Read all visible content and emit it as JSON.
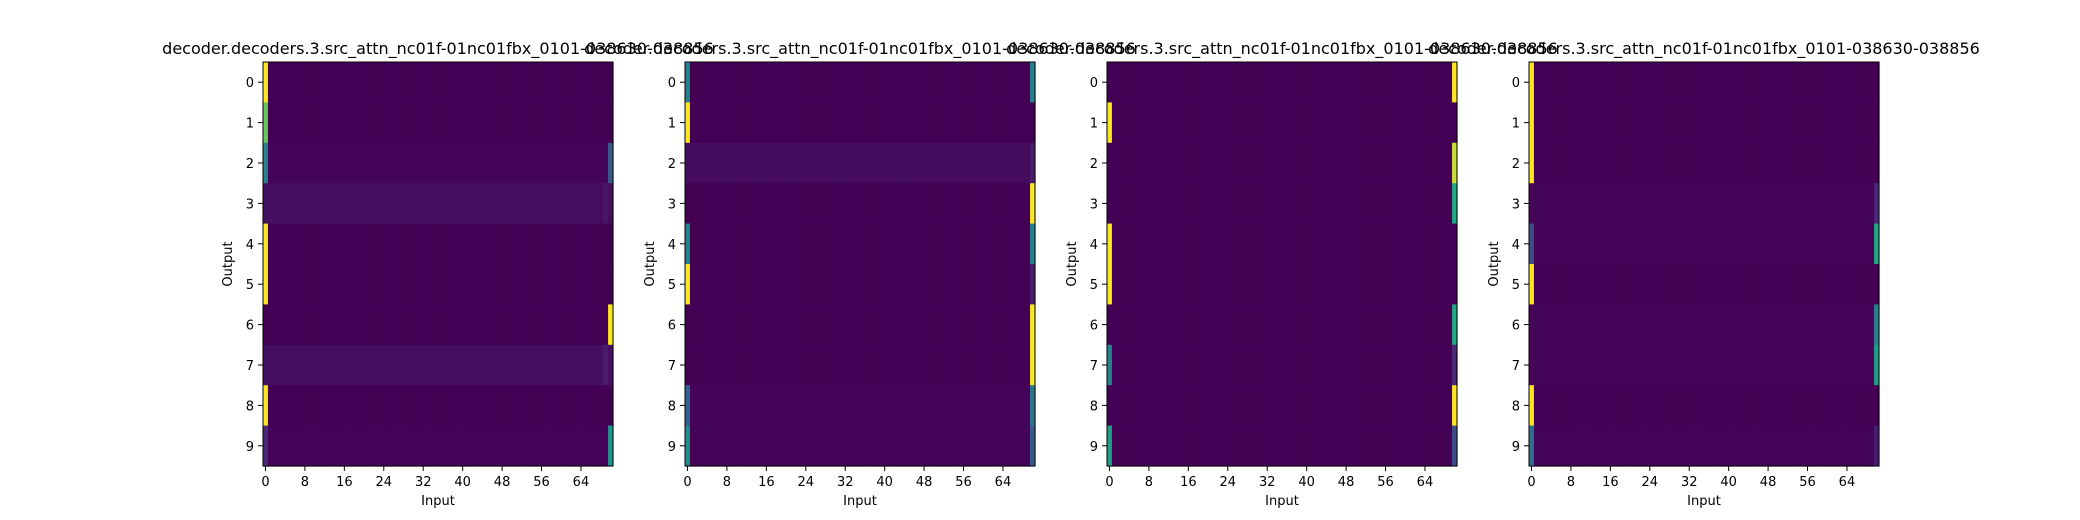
{
  "chart_data": [
    {
      "type": "heatmap",
      "title": "decoder.decoders.3.src_attn_nc01f-01nc01fbx_0101-038630-038856",
      "xlabel": "Input",
      "ylabel": "Output",
      "xticks": [
        "0",
        "8",
        "16",
        "24",
        "32",
        "40",
        "48",
        "56",
        "64"
      ],
      "yticks": [
        "0",
        "1",
        "2",
        "3",
        "4",
        "5",
        "6",
        "7",
        "8",
        "9"
      ],
      "n_cols": 71,
      "n_rows": 10,
      "colormap": "viridis",
      "rows": [
        {
          "peaks": [
            [
              0,
              1.0
            ]
          ],
          "base": 0.0
        },
        {
          "peaks": [
            [
              0,
              0.85
            ]
          ],
          "base": 0.0
        },
        {
          "peaks": [
            [
              0,
              0.55
            ],
            [
              70,
              0.35
            ]
          ],
          "base": 0.01
        },
        {
          "peaks": [
            [
              69,
              0.08
            ]
          ],
          "base": 0.05
        },
        {
          "peaks": [
            [
              0,
              1.0
            ]
          ],
          "base": 0.0
        },
        {
          "peaks": [
            [
              0,
              1.0
            ]
          ],
          "base": 0.0
        },
        {
          "peaks": [
            [
              70,
              1.0
            ]
          ],
          "base": 0.0
        },
        {
          "peaks": [
            [
              69,
              0.1
            ]
          ],
          "base": 0.05
        },
        {
          "peaks": [
            [
              0,
              1.0
            ]
          ],
          "base": 0.0
        },
        {
          "peaks": [
            [
              0,
              0.15
            ],
            [
              70,
              0.65
            ]
          ],
          "base": 0.01
        }
      ]
    },
    {
      "type": "heatmap",
      "title": "decoder.decoders.3.src_attn_nc01f-01nc01fbx_0101-038630-038856",
      "xlabel": "Input",
      "ylabel": "Output",
      "xticks": [
        "0",
        "8",
        "16",
        "24",
        "32",
        "40",
        "48",
        "56",
        "64"
      ],
      "yticks": [
        "0",
        "1",
        "2",
        "3",
        "4",
        "5",
        "6",
        "7",
        "8",
        "9"
      ],
      "n_cols": 71,
      "n_rows": 10,
      "colormap": "viridis",
      "rows": [
        {
          "peaks": [
            [
              0,
              0.55
            ],
            [
              70,
              0.55
            ]
          ],
          "base": 0.0
        },
        {
          "peaks": [
            [
              0,
              1.0
            ]
          ],
          "base": 0.0
        },
        {
          "peaks": [
            [
              70,
              0.1
            ]
          ],
          "base": 0.04
        },
        {
          "peaks": [
            [
              70,
              1.0
            ]
          ],
          "base": 0.0
        },
        {
          "peaks": [
            [
              0,
              0.55
            ],
            [
              70,
              0.55
            ]
          ],
          "base": 0.0
        },
        {
          "peaks": [
            [
              0,
              1.0
            ],
            [
              70,
              0.1
            ]
          ],
          "base": 0.0
        },
        {
          "peaks": [
            [
              70,
              1.0
            ]
          ],
          "base": 0.0
        },
        {
          "peaks": [
            [
              70,
              1.0
            ]
          ],
          "base": 0.0
        },
        {
          "peaks": [
            [
              0,
              0.4
            ],
            [
              70,
              0.5
            ]
          ],
          "base": 0.01
        },
        {
          "peaks": [
            [
              0,
              0.6
            ],
            [
              70,
              0.35
            ]
          ],
          "base": 0.01
        }
      ]
    },
    {
      "type": "heatmap",
      "title": "decoder.decoders.3.src_attn_nc01f-01nc01fbx_0101-038630-038856",
      "xlabel": "Input",
      "ylabel": "Output",
      "xticks": [
        "0",
        "8",
        "16",
        "24",
        "32",
        "40",
        "48",
        "56",
        "64"
      ],
      "yticks": [
        "0",
        "1",
        "2",
        "3",
        "4",
        "5",
        "6",
        "7",
        "8",
        "9"
      ],
      "n_cols": 71,
      "n_rows": 10,
      "colormap": "viridis",
      "rows": [
        {
          "peaks": [
            [
              70,
              1.0
            ]
          ],
          "base": 0.0
        },
        {
          "peaks": [
            [
              0,
              1.0
            ]
          ],
          "base": 0.0
        },
        {
          "peaks": [
            [
              70,
              0.95
            ]
          ],
          "base": 0.0
        },
        {
          "peaks": [
            [
              70,
              0.75
            ]
          ],
          "base": 0.0
        },
        {
          "peaks": [
            [
              0,
              1.0
            ]
          ],
          "base": 0.0
        },
        {
          "peaks": [
            [
              0,
              1.0
            ]
          ],
          "base": 0.0
        },
        {
          "peaks": [
            [
              70,
              0.75
            ]
          ],
          "base": 0.0
        },
        {
          "peaks": [
            [
              0,
              0.55
            ],
            [
              70,
              0.15
            ]
          ],
          "base": 0.0
        },
        {
          "peaks": [
            [
              70,
              1.0
            ]
          ],
          "base": 0.0
        },
        {
          "peaks": [
            [
              0,
              0.7
            ],
            [
              70,
              0.3
            ]
          ],
          "base": 0.0
        }
      ]
    },
    {
      "type": "heatmap",
      "title": "decoder.decoders.3.src_attn_nc01f-01nc01fbx_0101-038630-038856",
      "xlabel": "Input",
      "ylabel": "Output",
      "xticks": [
        "0",
        "8",
        "16",
        "24",
        "32",
        "40",
        "48",
        "56",
        "64"
      ],
      "yticks": [
        "0",
        "1",
        "2",
        "3",
        "4",
        "5",
        "6",
        "7",
        "8",
        "9"
      ],
      "n_cols": 71,
      "n_rows": 10,
      "colormap": "viridis",
      "rows": [
        {
          "peaks": [
            [
              0,
              1.0
            ]
          ],
          "base": 0.0
        },
        {
          "peaks": [
            [
              0,
              1.0
            ]
          ],
          "base": 0.0
        },
        {
          "peaks": [
            [
              0,
              1.0
            ]
          ],
          "base": 0.0
        },
        {
          "peaks": [
            [
              70,
              0.15
            ]
          ],
          "base": 0.02
        },
        {
          "peaks": [
            [
              0,
              0.3
            ],
            [
              70,
              0.75
            ]
          ],
          "base": 0.01
        },
        {
          "peaks": [
            [
              0,
              1.0
            ]
          ],
          "base": 0.0
        },
        {
          "peaks": [
            [
              70,
              0.55
            ]
          ],
          "base": 0.02
        },
        {
          "peaks": [
            [
              70,
              0.7
            ]
          ],
          "base": 0.02
        },
        {
          "peaks": [
            [
              0,
              1.0
            ]
          ],
          "base": 0.0
        },
        {
          "peaks": [
            [
              0,
              0.45
            ],
            [
              70,
              0.1
            ]
          ],
          "base": 0.01
        }
      ]
    }
  ]
}
